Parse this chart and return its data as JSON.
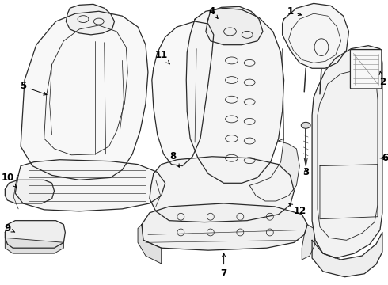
{
  "background_color": "#ffffff",
  "line_color": "#2a2a2a",
  "label_color": "#000000",
  "figsize": [
    4.9,
    3.6
  ],
  "dpi": 100,
  "lw": 0.9
}
